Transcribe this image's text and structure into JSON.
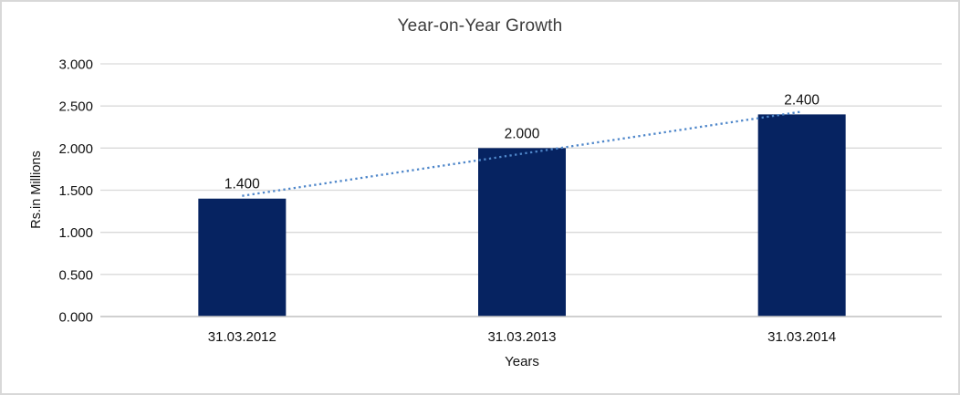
{
  "chart_data": {
    "type": "bar",
    "title": "Year-on-Year Growth",
    "xlabel": "Years",
    "ylabel": "Rs.in Millions",
    "categories": [
      "31.03.2012",
      "31.03.2013",
      "31.03.2014"
    ],
    "values": [
      1.4,
      2.0,
      2.4
    ],
    "value_labels": [
      "1.400",
      "2.000",
      "2.400"
    ],
    "y_ticks": [
      0,
      0.5,
      1.0,
      1.5,
      2.0,
      2.5,
      3.0
    ],
    "y_tick_labels": [
      "0.000",
      "0.500",
      "1.000",
      "1.500",
      "2.000",
      "2.500",
      "3.000"
    ],
    "ylim": [
      0,
      3
    ],
    "grid": true,
    "legend": "none",
    "trendline": {
      "type": "linear",
      "style": "dotted",
      "fitted_values": [
        1.433,
        1.933,
        2.433
      ]
    },
    "colors": {
      "bar": "#062361",
      "trendline": "#4f87ca",
      "gridline": "#d9d9d9",
      "axis_line": "#c3c3c3",
      "title_text": "#3c3c3c",
      "label_text": "#111111",
      "frame_border": "#d8d8d8"
    }
  }
}
